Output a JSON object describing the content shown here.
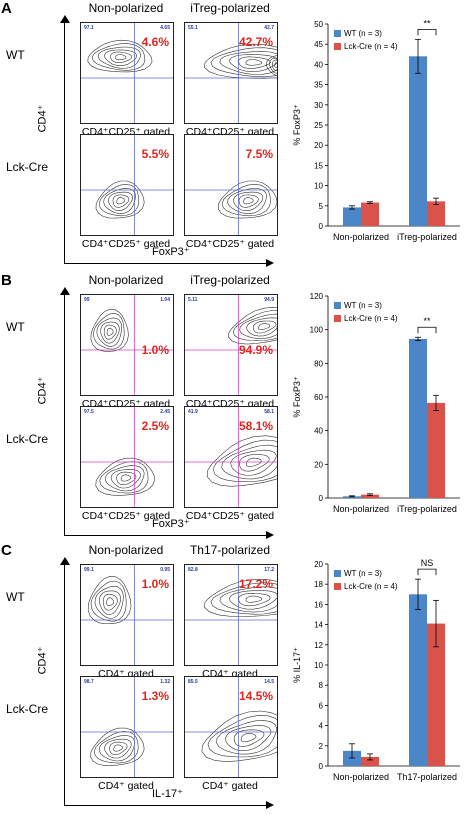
{
  "panels": [
    {
      "letter": "A",
      "col_headers": [
        "Non-polarized",
        "iTreg-polarized"
      ],
      "row_labels": [
        "WT",
        "Lck-Cre"
      ],
      "gated_labels": [
        "CD4⁺CD25⁺ gated",
        "CD4⁺CD25⁺ gated",
        "CD4⁺CD25⁺ gated",
        "CD4⁺CD25⁺ gated"
      ],
      "y_axis_label": "CD4⁺",
      "x_axis_label": "FoxP3⁺",
      "quadrant_values": [
        [
          "97.1",
          "4.65"
        ],
        [
          "55.1",
          "42.7"
        ],
        [
          "",
          ""
        ],
        [
          "",
          ""
        ]
      ],
      "percents": [
        "4.6%",
        "42.7%",
        "5.5%",
        "7.5%"
      ],
      "divider_color": "#5a6ad0"
    },
    {
      "letter": "B",
      "col_headers": [
        "Non-polarized",
        "iTreg-polarized"
      ],
      "row_labels": [
        "WT",
        "Lck-Cre"
      ],
      "gated_labels": [
        "CD4⁺CD25⁺ gated",
        "CD4⁺CD25⁺ gated",
        "CD4⁺CD25⁺ gated",
        "CD4⁺CD25⁺ gated"
      ],
      "y_axis_label": "CD4⁺",
      "x_axis_label": "FoxP3⁺",
      "quadrant_values": [
        [
          "99",
          "1.04"
        ],
        [
          "5.11",
          "94.9"
        ],
        [
          "97.5",
          "2.45"
        ],
        [
          "41.9",
          "58.1"
        ]
      ],
      "percents": [
        "1.0%",
        "94.9%",
        "2.5%",
        "58.1%"
      ],
      "divider_color": "#d040c0"
    },
    {
      "letter": "C",
      "col_headers": [
        "Non-polarized",
        "Th17-polarized"
      ],
      "row_labels": [
        "WT",
        "Lck-Cre"
      ],
      "gated_labels": [
        "CD4⁺ gated",
        "CD4⁺ gated",
        "CD4⁺ gated",
        "CD4⁺ gated"
      ],
      "y_axis_label": "CD4⁺",
      "x_axis_label": "IL-17⁺",
      "quadrant_values": [
        [
          "99.1",
          "0.95"
        ],
        [
          "82.8",
          "17.2"
        ],
        [
          "98.7",
          "1.32"
        ],
        [
          "85.5",
          "14.5"
        ]
      ],
      "percents": [
        "1.0%",
        "17.2%",
        "1.3%",
        "14.5%"
      ],
      "divider_color": "#5a6ad0"
    }
  ],
  "chart_data": [
    {
      "type": "bar",
      "categories": [
        "Non-polarized",
        "iTreg-polarized"
      ],
      "series": [
        {
          "name": "WT (n = 3)",
          "values": [
            4.6,
            42.0
          ],
          "errors": [
            0.4,
            4.2
          ]
        },
        {
          "name": "Lck-Cre (n = 4)",
          "values": [
            5.8,
            6.1
          ],
          "errors": [
            0.2,
            0.8
          ]
        }
      ],
      "ylabel": "% FoxP3⁺",
      "ylim": [
        0,
        50
      ],
      "yticks": [
        0,
        5,
        10,
        15,
        20,
        25,
        30,
        35,
        40,
        45,
        50
      ],
      "significance": "**",
      "colors": [
        "#4a86c8",
        "#d9534a"
      ],
      "legend": "top-left"
    },
    {
      "type": "bar",
      "categories": [
        "Non-polarized",
        "iTreg-polarized"
      ],
      "series": [
        {
          "name": "WT (n = 3)",
          "values": [
            1.0,
            94.5
          ],
          "errors": [
            0.3,
            1.0
          ]
        },
        {
          "name": "Lck-Cre (n = 4)",
          "values": [
            2.0,
            56.5
          ],
          "errors": [
            0.5,
            4.5
          ]
        }
      ],
      "ylabel": "% FoxP3⁺",
      "ylim": [
        0,
        120
      ],
      "yticks": [
        0,
        20,
        40,
        60,
        80,
        100,
        120
      ],
      "significance": "**",
      "colors": [
        "#4a86c8",
        "#d9534a"
      ],
      "legend": "top-left"
    },
    {
      "type": "bar",
      "categories": [
        "Non-polarized",
        "Th17-polarized"
      ],
      "series": [
        {
          "name": "WT (n = 3)",
          "values": [
            1.5,
            17.0
          ],
          "errors": [
            0.7,
            1.5
          ]
        },
        {
          "name": "Lck-Cre (n = 4)",
          "values": [
            0.9,
            14.1
          ],
          "errors": [
            0.3,
            2.3
          ]
        }
      ],
      "ylabel": "% IL-17⁺",
      "ylim": [
        0,
        20
      ],
      "yticks": [
        0,
        2,
        4,
        6,
        8,
        10,
        12,
        14,
        16,
        18,
        20
      ],
      "significance": "NS",
      "colors": [
        "#4a86c8",
        "#d9534a"
      ],
      "legend": "top-left"
    }
  ]
}
